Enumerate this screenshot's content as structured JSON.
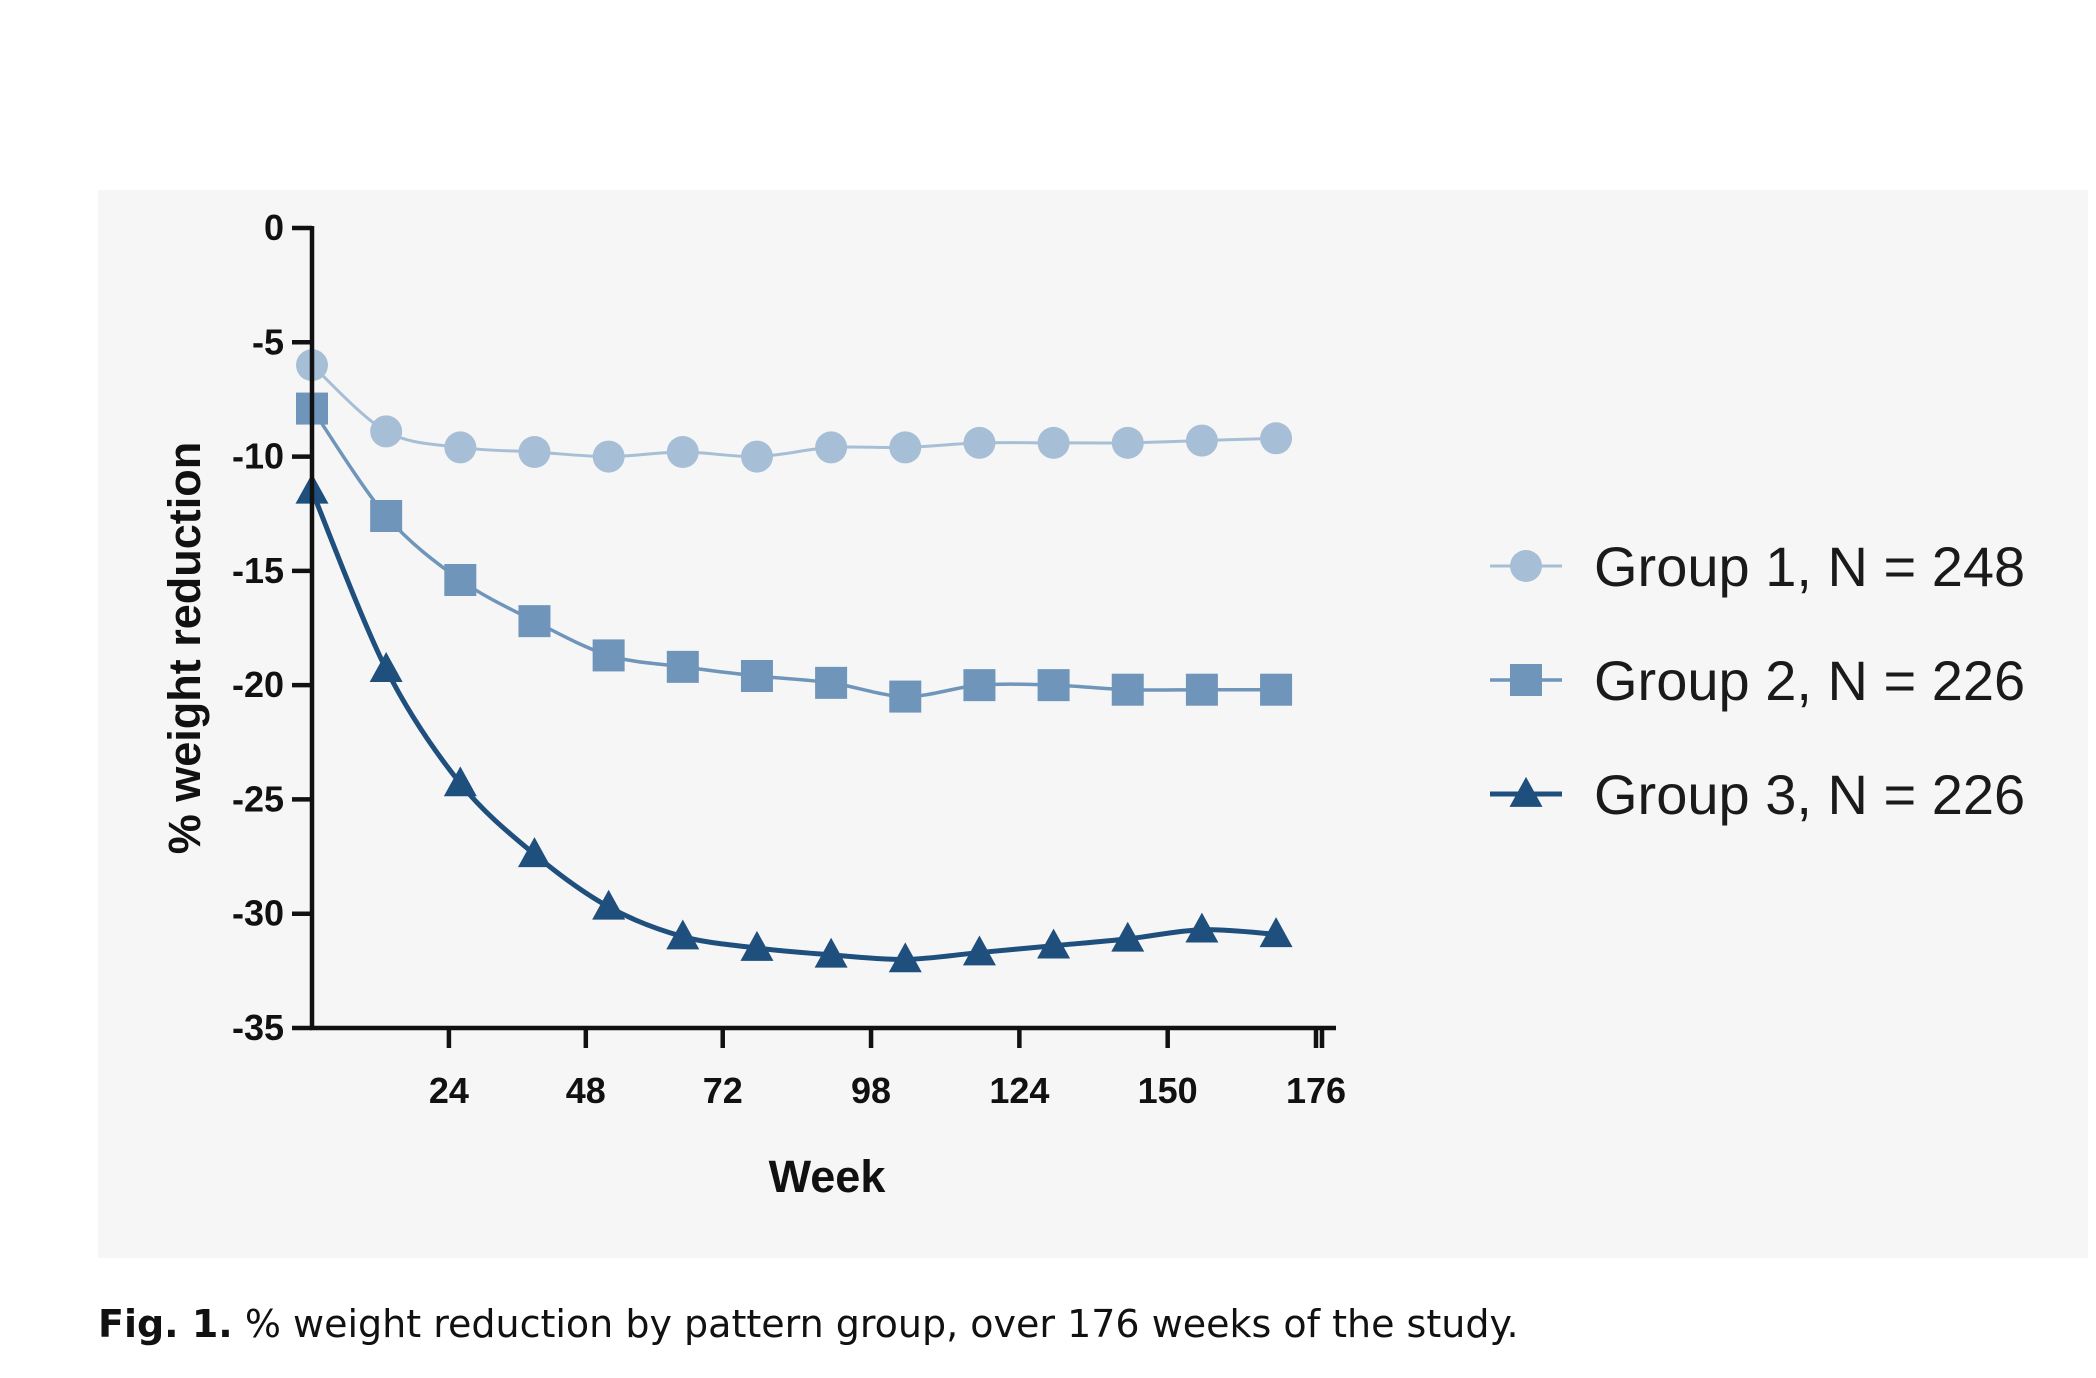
{
  "chart_data": {
    "type": "line",
    "xlabel": "Week",
    "ylabel": "% weight reduction",
    "ylim": [
      -35,
      0
    ],
    "y_ticks": [
      0,
      -5,
      -10,
      -15,
      -20,
      -25,
      -30,
      -35
    ],
    "x_ticks": [
      24,
      48,
      72,
      98,
      124,
      150,
      176
    ],
    "xlim": [
      0,
      176
    ],
    "grid": false,
    "legend_position": "right",
    "x": [
      0,
      13,
      26,
      39,
      52,
      65,
      78,
      91,
      104,
      117,
      130,
      143,
      156,
      169
    ],
    "series": [
      {
        "name": "Group 1, N = 248",
        "marker": "circle",
        "color": "#a6bfd6",
        "values": [
          -6.0,
          -8.9,
          -9.6,
          -9.8,
          -10.0,
          -9.8,
          -10.0,
          -9.6,
          -9.6,
          -9.4,
          -9.4,
          -9.4,
          -9.3,
          -9.2
        ]
      },
      {
        "name": "Group 2, N = 226",
        "marker": "square",
        "color": "#6f95ba",
        "values": [
          -7.9,
          -12.6,
          -15.4,
          -17.2,
          -18.7,
          -19.2,
          -19.6,
          -19.9,
          -20.5,
          -20.0,
          -20.0,
          -20.2,
          -20.2,
          -20.2
        ]
      },
      {
        "name": "Group 3, N = 226",
        "marker": "triangle",
        "color": "#1f4f7d",
        "values": [
          -11.5,
          -19.3,
          -24.3,
          -27.4,
          -29.7,
          -31.0,
          -31.5,
          -31.8,
          -32.0,
          -31.7,
          -31.4,
          -31.1,
          -30.7,
          -30.9
        ]
      }
    ]
  },
  "caption": {
    "label": "Fig. 1.",
    "text": "% weight reduction by pattern group, over 176 weeks of the study."
  }
}
